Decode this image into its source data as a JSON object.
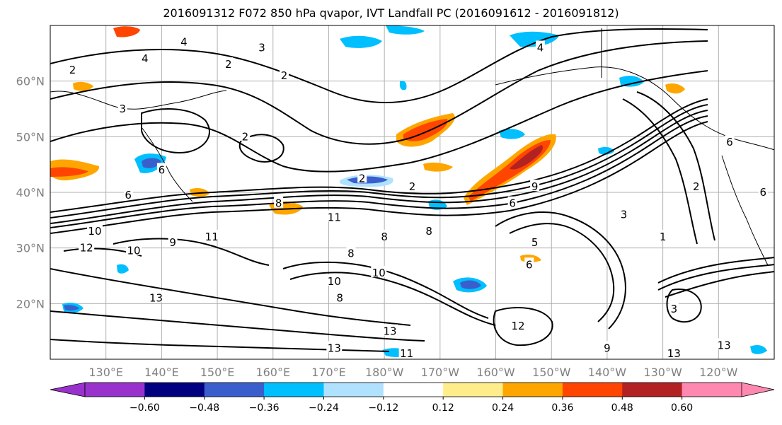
{
  "title": "2016091312 F072 850 hPa qvapor, IVT Landfall PC (2016091612 - 2016091812)",
  "lat_labels": [
    {
      "text": "60°N",
      "lat": 60
    },
    {
      "text": "50°N",
      "lat": 50
    },
    {
      "text": "40°N",
      "lat": 40
    },
    {
      "text": "30°N",
      "lat": 30
    },
    {
      "text": "20°N",
      "lat": 20
    }
  ],
  "lon_labels": [
    {
      "text": "130°E",
      "lon": 130
    },
    {
      "text": "140°E",
      "lon": 140
    },
    {
      "text": "150°E",
      "lon": 150
    },
    {
      "text": "160°E",
      "lon": 160
    },
    {
      "text": "170°E",
      "lon": 170
    },
    {
      "text": "180°W",
      "lon": 180
    },
    {
      "text": "170°W",
      "lon": 190
    },
    {
      "text": "160°W",
      "lon": 200
    },
    {
      "text": "150°W",
      "lon": 210
    },
    {
      "text": "140°W",
      "lon": 220
    },
    {
      "text": "130°W",
      "lon": 230
    },
    {
      "text": "120°W",
      "lon": 240
    }
  ],
  "extent": {
    "lon_min": 120,
    "lon_max": 250,
    "lat_min": 10,
    "lat_max": 70
  },
  "colorbar": {
    "colors": [
      "#9932cc",
      "#000080",
      "#3a5fcd",
      "#00bfff",
      "#b0e2ff",
      "#ffffff",
      "#ffec8b",
      "#ffa500",
      "#ff4500",
      "#b22222",
      "#ff88b0"
    ],
    "tick_labels": [
      "−0.60",
      "−0.48",
      "−0.36",
      "−0.24",
      "−0.12",
      "0.12",
      "0.24",
      "0.36",
      "0.48",
      "0.60"
    ]
  },
  "contour_labels": [
    {
      "text": "4",
      "lon": 137,
      "lat": 64
    },
    {
      "text": "4",
      "lon": 144,
      "lat": 67
    },
    {
      "text": "2",
      "lon": 124,
      "lat": 62
    },
    {
      "text": "3",
      "lon": 158,
      "lat": 66
    },
    {
      "text": "2",
      "lon": 152,
      "lat": 63
    },
    {
      "text": "3",
      "lon": 133,
      "lat": 55
    },
    {
      "text": "2",
      "lon": 155,
      "lat": 50
    },
    {
      "text": "2",
      "lon": 162,
      "lat": 61
    },
    {
      "text": "6",
      "lon": 140,
      "lat": 44
    },
    {
      "text": "6",
      "lon": 134,
      "lat": 39.5
    },
    {
      "text": "8",
      "lon": 161,
      "lat": 38
    },
    {
      "text": "2",
      "lon": 176,
      "lat": 42.5
    },
    {
      "text": "2",
      "lon": 185,
      "lat": 41
    },
    {
      "text": "11",
      "lon": 171,
      "lat": 35.5
    },
    {
      "text": "10",
      "lon": 128,
      "lat": 33
    },
    {
      "text": "12",
      "lon": 126.5,
      "lat": 30
    },
    {
      "text": "10",
      "lon": 135,
      "lat": 29.5
    },
    {
      "text": "9",
      "lon": 142,
      "lat": 31
    },
    {
      "text": "11",
      "lon": 149,
      "lat": 32
    },
    {
      "text": "8",
      "lon": 174,
      "lat": 29
    },
    {
      "text": "8",
      "lon": 180,
      "lat": 32
    },
    {
      "text": "8",
      "lon": 188,
      "lat": 33
    },
    {
      "text": "10",
      "lon": 171,
      "lat": 24
    },
    {
      "text": "10",
      "lon": 179,
      "lat": 25.5
    },
    {
      "text": "8",
      "lon": 172,
      "lat": 21
    },
    {
      "text": "13",
      "lon": 139,
      "lat": 21
    },
    {
      "text": "13",
      "lon": 181,
      "lat": 15
    },
    {
      "text": "13",
      "lon": 171,
      "lat": 12
    },
    {
      "text": "12",
      "lon": 204,
      "lat": 16
    },
    {
      "text": "11",
      "lon": 184,
      "lat": 11
    },
    {
      "text": "9",
      "lon": 207,
      "lat": 41
    },
    {
      "text": "6",
      "lon": 203,
      "lat": 38
    },
    {
      "text": "5",
      "lon": 207,
      "lat": 31
    },
    {
      "text": "6",
      "lon": 206,
      "lat": 27
    },
    {
      "text": "3",
      "lon": 223,
      "lat": 36
    },
    {
      "text": "1",
      "lon": 230,
      "lat": 32
    },
    {
      "text": "2",
      "lon": 236,
      "lat": 41
    },
    {
      "text": "4",
      "lon": 208,
      "lat": 66
    },
    {
      "text": "6",
      "lon": 242,
      "lat": 49
    },
    {
      "text": "6",
      "lon": 248,
      "lat": 40
    },
    {
      "text": "3",
      "lon": 232,
      "lat": 19
    },
    {
      "text": "9",
      "lon": 220,
      "lat": 12
    },
    {
      "text": "13",
      "lon": 232,
      "lat": 11
    },
    {
      "text": "13",
      "lon": 241,
      "lat": 12.5
    }
  ]
}
